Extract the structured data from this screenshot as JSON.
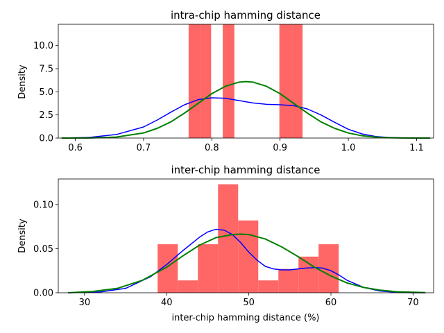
{
  "chart_data": [
    {
      "type": "histogram",
      "title": "intra-chip hamming distance",
      "xlabel": "",
      "ylabel": "Density",
      "xlim": [
        0.575,
        1.125
      ],
      "ylim": [
        0,
        12.3
      ],
      "xticks": [
        "0.6",
        "0.7",
        "0.8",
        "0.9",
        "1.0",
        "1.1"
      ],
      "xtick_values": [
        0.6,
        0.7,
        0.8,
        0.9,
        1.0,
        1.1
      ],
      "yticks": [
        "0.0",
        "2.5",
        "5.0",
        "7.5",
        "10.0"
      ],
      "ytick_values": [
        0,
        2.5,
        5.0,
        7.5,
        10.0
      ],
      "bar_color": "#ff6666",
      "bins": [
        {
          "x0": 0.766,
          "x1": 0.783,
          "value": 12.3
        },
        {
          "x0": 0.783,
          "x1": 0.799,
          "value": 12.3
        },
        {
          "x0": 0.816,
          "x1": 0.833,
          "value": 12.3
        },
        {
          "x0": 0.899,
          "x1": 0.916,
          "value": 12.3
        },
        {
          "x0": 0.916,
          "x1": 0.933,
          "value": 12.3
        }
      ],
      "series": [
        {
          "color": "#0000ff",
          "x": [
            0.58,
            0.62,
            0.66,
            0.7,
            0.72,
            0.74,
            0.76,
            0.78,
            0.8,
            0.82,
            0.84,
            0.86,
            0.88,
            0.9,
            0.92,
            0.94,
            0.96,
            0.98,
            1.0,
            1.02,
            1.04,
            1.06,
            1.08,
            1.1,
            1.12
          ],
          "y": [
            0.0,
            0.07,
            0.38,
            1.2,
            1.95,
            2.8,
            3.6,
            4.15,
            4.35,
            4.3,
            4.05,
            3.8,
            3.65,
            3.6,
            3.5,
            3.15,
            2.5,
            1.7,
            0.95,
            0.45,
            0.17,
            0.06,
            0.02,
            0.0,
            0.0
          ]
        },
        {
          "color": "#008000",
          "x": [
            0.58,
            0.62,
            0.66,
            0.7,
            0.72,
            0.74,
            0.76,
            0.78,
            0.8,
            0.82,
            0.84,
            0.85,
            0.86,
            0.88,
            0.9,
            0.92,
            0.94,
            0.96,
            0.98,
            1.0,
            1.02,
            1.04,
            1.06,
            1.08,
            1.12
          ],
          "y": [
            0.0,
            0.01,
            0.1,
            0.55,
            1.05,
            1.75,
            2.7,
            3.75,
            4.8,
            5.6,
            6.05,
            6.1,
            6.05,
            5.6,
            4.8,
            3.75,
            2.7,
            1.75,
            1.05,
            0.55,
            0.25,
            0.1,
            0.035,
            0.01,
            0.0
          ]
        }
      ]
    },
    {
      "type": "histogram",
      "title": "inter-chip hamming distance",
      "xlabel": "inter-chip hamming distance (%)",
      "ylabel": "Density",
      "xlim": [
        26.8,
        72.5
      ],
      "ylim": [
        0,
        0.129
      ],
      "xticks": [
        "30",
        "40",
        "50",
        "60",
        "70"
      ],
      "xtick_values": [
        30,
        40,
        50,
        60,
        70
      ],
      "yticks": [
        "0.00",
        "0.05",
        "0.10"
      ],
      "ytick_values": [
        0,
        0.05,
        0.1
      ],
      "bar_color": "#ff6666",
      "bins": [
        {
          "x0": 38.9,
          "x1": 41.35,
          "value": 0.055
        },
        {
          "x0": 41.35,
          "x1": 43.8,
          "value": 0.014
        },
        {
          "x0": 43.8,
          "x1": 46.25,
          "value": 0.055
        },
        {
          "x0": 46.25,
          "x1": 48.7,
          "value": 0.123
        },
        {
          "x0": 48.7,
          "x1": 51.15,
          "value": 0.082
        },
        {
          "x0": 51.15,
          "x1": 53.6,
          "value": 0.014
        },
        {
          "x0": 53.6,
          "x1": 56.05,
          "value": 0.027
        },
        {
          "x0": 56.05,
          "x1": 58.5,
          "value": 0.041
        },
        {
          "x0": 58.5,
          "x1": 60.95,
          "value": 0.055
        }
      ],
      "series": [
        {
          "color": "#0000ff",
          "x": [
            28,
            32,
            35,
            38,
            40,
            42,
            44,
            45,
            46,
            47,
            48,
            49,
            50,
            51,
            52,
            53,
            54,
            55,
            56,
            57,
            58,
            59,
            60,
            61,
            62,
            64,
            66,
            68,
            70,
            71.5
          ],
          "y": [
            0.0,
            0.001,
            0.005,
            0.018,
            0.032,
            0.048,
            0.063,
            0.069,
            0.072,
            0.071,
            0.066,
            0.057,
            0.046,
            0.037,
            0.03,
            0.027,
            0.026,
            0.026,
            0.027,
            0.028,
            0.0285,
            0.028,
            0.025,
            0.02,
            0.014,
            0.006,
            0.002,
            0.0005,
            0.0,
            0.0
          ]
        },
        {
          "color": "#008000",
          "x": [
            28,
            31,
            34,
            37,
            40,
            42,
            44,
            46,
            48,
            49,
            50,
            52,
            54,
            56,
            58,
            60,
            62,
            64,
            66,
            68,
            71.5
          ],
          "y": [
            0.0,
            0.0015,
            0.005,
            0.014,
            0.029,
            0.042,
            0.054,
            0.0625,
            0.066,
            0.0665,
            0.066,
            0.061,
            0.052,
            0.041,
            0.029,
            0.019,
            0.011,
            0.006,
            0.003,
            0.0012,
            0.0002
          ]
        }
      ]
    }
  ]
}
